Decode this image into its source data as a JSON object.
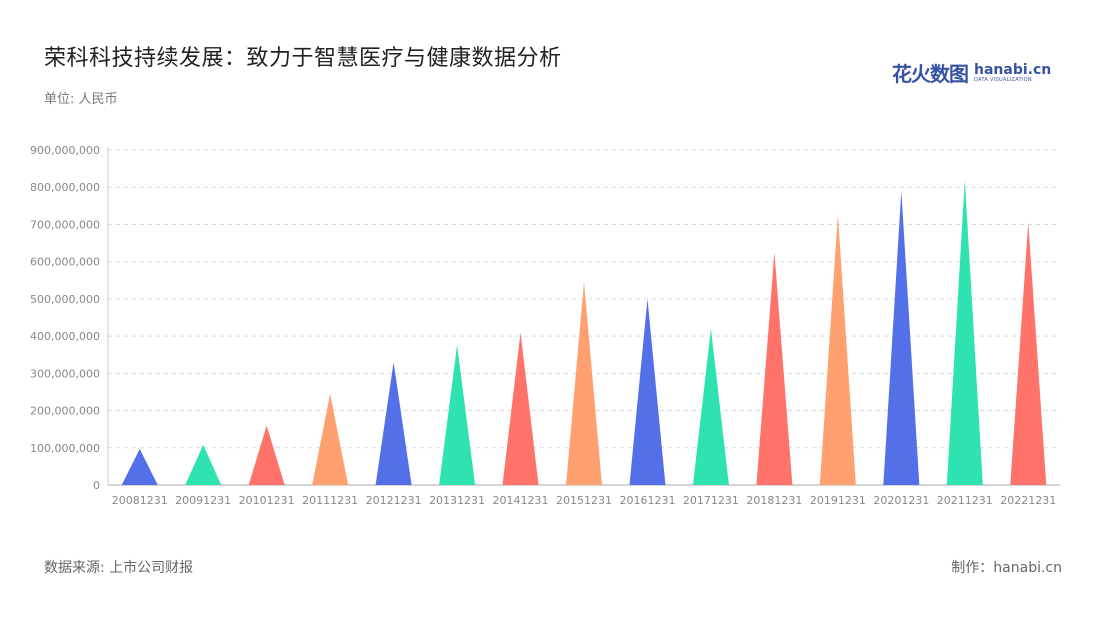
{
  "header": {
    "title": "荣科科技持续发展：致力于智慧医疗与健康数据分析",
    "unit": "单位: 人民币"
  },
  "logo": {
    "cn_text": "花火数图",
    "en_text": "hanabi.cn",
    "en_sub": "DATA VISUALIZATION"
  },
  "footer": {
    "source": "数据来源: 上市公司财报",
    "credit": "制作：hanabi.cn"
  },
  "chart_data": {
    "type": "bar",
    "bar_shape": "triangle",
    "categories": [
      "20081231",
      "20091231",
      "20101231",
      "20111231",
      "20121231",
      "20131231",
      "20141231",
      "20151231",
      "20161231",
      "20171231",
      "20181231",
      "20191231",
      "20201231",
      "20211231",
      "20221231"
    ],
    "values": [
      97000000,
      108000000,
      160000000,
      245000000,
      330000000,
      376000000,
      410000000,
      545000000,
      500000000,
      420000000,
      625000000,
      727000000,
      790000000,
      820000000,
      705000000
    ],
    "colors": [
      "#5470e8",
      "#2fe3b0",
      "#ff736b",
      "#ffa070",
      "#5470e8",
      "#2fe3b0",
      "#ff736b",
      "#ffa070",
      "#5470e8",
      "#2fe3b0",
      "#ff736b",
      "#ffa070",
      "#5470e8",
      "#2fe3b0",
      "#ff736b"
    ],
    "ylim": [
      0,
      900000000
    ],
    "yticks": [
      0,
      100000000,
      200000000,
      300000000,
      400000000,
      500000000,
      600000000,
      700000000,
      800000000,
      900000000
    ],
    "ytick_labels": [
      "0",
      "100,000,000",
      "200,000,000",
      "300,000,000",
      "400,000,000",
      "500,000,000",
      "600,000,000",
      "700,000,000",
      "800,000,000",
      "900,000,000"
    ],
    "grid": true,
    "xlabel": "",
    "ylabel": ""
  }
}
